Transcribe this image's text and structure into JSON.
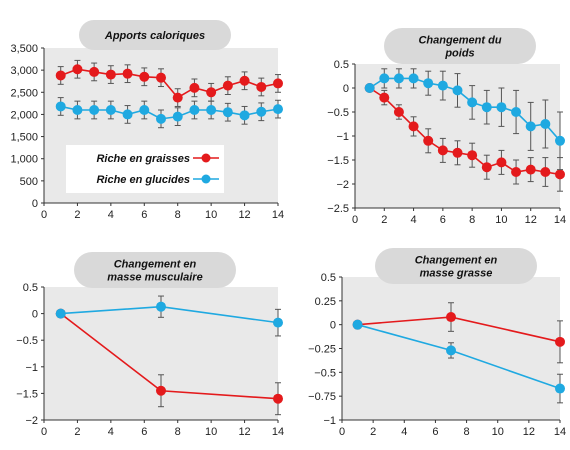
{
  "colors": {
    "red": "#e41a1c",
    "blue": "#1fa9e1",
    "panel_bg": "#e9e9e9",
    "title_bg": "#d9d9d9",
    "error": "#555555"
  },
  "chart_data": [
    {
      "type": "line",
      "title": "Apports caloriques",
      "x": [
        1,
        2,
        3,
        4,
        5,
        6,
        7,
        8,
        9,
        10,
        11,
        12,
        13,
        14
      ],
      "xticks": [
        "0",
        "2",
        "4",
        "6",
        "8",
        "10",
        "12",
        "14"
      ],
      "yticks": [
        "0",
        "500",
        "1,000",
        "1,500",
        "2,000",
        "2,500",
        "3,000",
        "3,500"
      ],
      "xlim": [
        0,
        14
      ],
      "ylim": [
        0,
        3500
      ],
      "legend": "inside-bottom",
      "series": [
        {
          "name": "Riche en graisses",
          "color": "#e41a1c",
          "values": [
            2880,
            3020,
            2960,
            2900,
            2920,
            2850,
            2830,
            2380,
            2600,
            2500,
            2650,
            2760,
            2620,
            2700
          ],
          "errors": [
            200,
            200,
            200,
            200,
            200,
            200,
            200,
            200,
            200,
            200,
            200,
            200,
            200,
            200
          ]
        },
        {
          "name": "Riche en glucides",
          "color": "#1fa9e1",
          "values": [
            2180,
            2100,
            2100,
            2100,
            2000,
            2100,
            1900,
            1950,
            2100,
            2100,
            2050,
            1980,
            2060,
            2120
          ],
          "errors": [
            200,
            200,
            200,
            200,
            200,
            200,
            200,
            200,
            200,
            200,
            200,
            200,
            200,
            200
          ]
        }
      ]
    },
    {
      "type": "line",
      "title_lines": [
        "Changement du",
        "poids"
      ],
      "x": [
        1,
        2,
        3,
        4,
        5,
        6,
        7,
        8,
        9,
        10,
        11,
        12,
        13,
        14
      ],
      "xticks": [
        "0",
        "2",
        "4",
        "6",
        "8",
        "10",
        "12",
        "14"
      ],
      "yticks": [
        "0.5",
        "0",
        "−0.5",
        "−1",
        "−1.5",
        "−2",
        "−2.5"
      ],
      "xlim": [
        0,
        14
      ],
      "ylim": [
        -2.5,
        0.5
      ],
      "series": [
        {
          "color": "#e41a1c",
          "values": [
            0,
            -0.2,
            -0.5,
            -0.8,
            -1.1,
            -1.3,
            -1.35,
            -1.4,
            -1.65,
            -1.55,
            -1.75,
            -1.7,
            -1.75,
            -1.8
          ],
          "errors": [
            0,
            0.15,
            0.15,
            0.2,
            0.25,
            0.25,
            0.25,
            0.25,
            0.25,
            0.25,
            0.25,
            0.25,
            0.3,
            0.35
          ]
        },
        {
          "color": "#1fa9e1",
          "values": [
            0,
            0.2,
            0.2,
            0.2,
            0.1,
            0.05,
            -0.05,
            -0.3,
            -0.4,
            -0.4,
            -0.5,
            -0.8,
            -0.75,
            -1.1
          ],
          "errors": [
            0,
            0.2,
            0.2,
            0.2,
            0.25,
            0.3,
            0.35,
            0.35,
            0.35,
            0.4,
            0.45,
            0.5,
            0.5,
            0.6
          ]
        }
      ]
    },
    {
      "type": "line",
      "title_lines": [
        "Changement en",
        "masse musculaire"
      ],
      "x": [
        1,
        7,
        14
      ],
      "xticks": [
        "0",
        "2",
        "4",
        "6",
        "8",
        "10",
        "12",
        "14"
      ],
      "yticks": [
        "0.5",
        "0",
        "−0.5",
        "−1",
        "−1.5",
        "−2"
      ],
      "xlim": [
        0,
        14
      ],
      "ylim": [
        -2,
        0.5
      ],
      "series": [
        {
          "color": "#e41a1c",
          "values": [
            0,
            -1.45,
            -1.6
          ],
          "errors": [
            0,
            0.3,
            0.3
          ]
        },
        {
          "color": "#1fa9e1",
          "values": [
            0,
            0.13,
            -0.17
          ],
          "errors": [
            0,
            0.2,
            0.25
          ]
        }
      ]
    },
    {
      "type": "line",
      "title_lines": [
        "Changement en",
        "masse grasse"
      ],
      "x": [
        1,
        7,
        14
      ],
      "xticks": [
        "0",
        "2",
        "4",
        "6",
        "8",
        "10",
        "12",
        "14"
      ],
      "yticks": [
        "0.5",
        "0.25",
        "0",
        "−0.25",
        "−0.5",
        "−0.75",
        "−1"
      ],
      "xlim": [
        0,
        14
      ],
      "ylim": [
        -1,
        0.5
      ],
      "series": [
        {
          "color": "#e41a1c",
          "values": [
            0,
            0.08,
            -0.18
          ],
          "errors": [
            0,
            0.15,
            0.22
          ]
        },
        {
          "color": "#1fa9e1",
          "values": [
            0,
            -0.27,
            -0.67
          ],
          "errors": [
            0,
            0.08,
            0.15
          ]
        }
      ]
    }
  ]
}
